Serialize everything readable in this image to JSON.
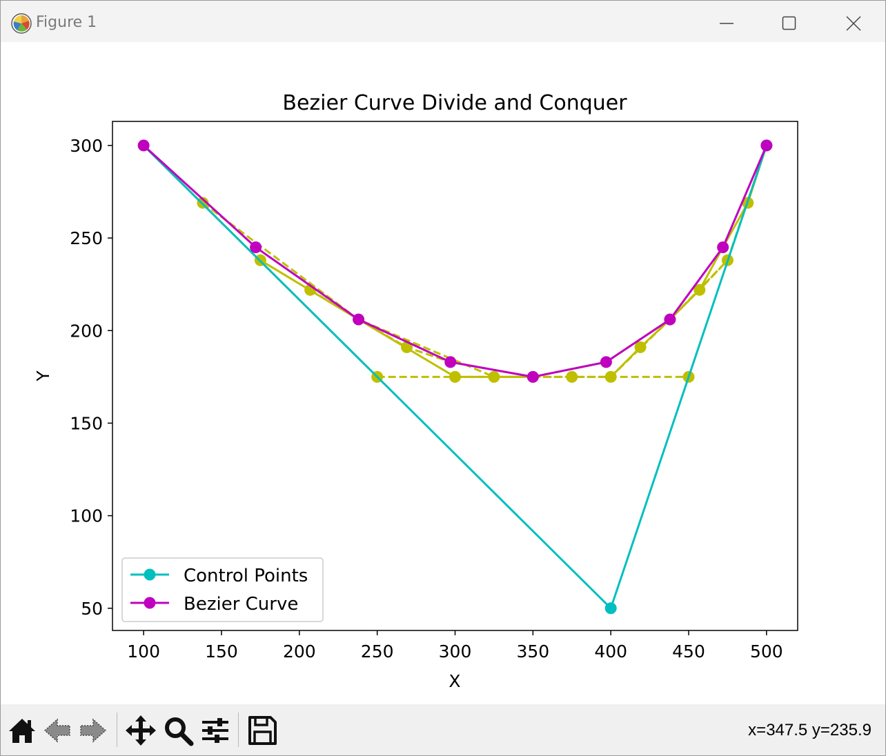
{
  "window": {
    "title": "Figure 1"
  },
  "toolbar": {
    "coords_readout": "x=347.5 y=235.9",
    "buttons": [
      "home-icon",
      "back-icon",
      "forward-icon",
      "pan-icon",
      "zoom-icon",
      "configure-subplots-icon",
      "save-icon"
    ]
  },
  "chart_data": {
    "type": "line",
    "title": "Bezier Curve Divide and Conquer",
    "xlabel": "X",
    "ylabel": "Y",
    "xlim": [
      80,
      520
    ],
    "ylim": [
      38,
      313
    ],
    "xticks": [
      100,
      150,
      200,
      250,
      300,
      350,
      400,
      450,
      500
    ],
    "yticks": [
      50,
      100,
      150,
      200,
      250,
      300
    ],
    "grid": false,
    "legend_position": "lower-left",
    "series": [
      {
        "name": "Control Points",
        "color": "#00bfbf",
        "style": "solid",
        "markers": "endpoints",
        "x": [
          100,
          400,
          500
        ],
        "y": [
          300,
          50,
          300
        ]
      },
      {
        "name": "Bezier Curve",
        "color": "#bf00bf",
        "style": "solid",
        "markers": "all",
        "x": [
          100,
          172,
          238,
          297,
          350,
          397,
          438,
          472,
          500
        ],
        "y": [
          300,
          245,
          206,
          183,
          175,
          183,
          206,
          245,
          300
        ]
      }
    ],
    "construction_lines": [
      {
        "color": "#bfbf00",
        "style": "dashed",
        "x": [
          250,
          350,
          450
        ],
        "y": [
          175,
          175,
          175
        ]
      },
      {
        "color": "#bfbf00",
        "style": "solid",
        "x": [
          100,
          250
        ],
        "y": [
          300,
          175
        ]
      },
      {
        "color": "#bfbf00",
        "style": "dashed",
        "x": [
          138,
          238,
          325,
          350
        ],
        "y": [
          269,
          206,
          175,
          175
        ]
      },
      {
        "color": "#bfbf00",
        "style": "solid",
        "x": [
          175,
          238,
          300,
          350
        ],
        "y": [
          238,
          206,
          175,
          175
        ]
      },
      {
        "color": "#bfbf00",
        "style": "dashed",
        "x": [
          207,
          238,
          269,
          297
        ],
        "y": [
          222,
          206,
          191,
          183
        ]
      },
      {
        "color": "#bfbf00",
        "style": "dashed",
        "x": [
          350,
          375,
          400,
          438,
          475,
          500
        ],
        "y": [
          175,
          175,
          175,
          206,
          238,
          300
        ]
      },
      {
        "color": "#bfbf00",
        "style": "solid",
        "x": [
          400,
          419,
          438,
          457,
          472,
          488,
          500
        ],
        "y": [
          175,
          191,
          206,
          222,
          245,
          269,
          300
        ]
      },
      {
        "color": "#bfbf00",
        "style": "dashed",
        "x": [
          350,
          397,
          438,
          457,
          475
        ],
        "y": [
          175,
          183,
          206,
          222,
          238
        ]
      }
    ],
    "construction_points": {
      "color": "#bfbf00",
      "x": [
        250,
        300,
        325,
        350,
        375,
        400,
        450,
        138,
        175,
        207,
        269,
        419,
        457,
        475,
        488
      ],
      "y": [
        175,
        175,
        175,
        175,
        175,
        175,
        175,
        269,
        238,
        222,
        191,
        191,
        222,
        238,
        269
      ]
    }
  }
}
